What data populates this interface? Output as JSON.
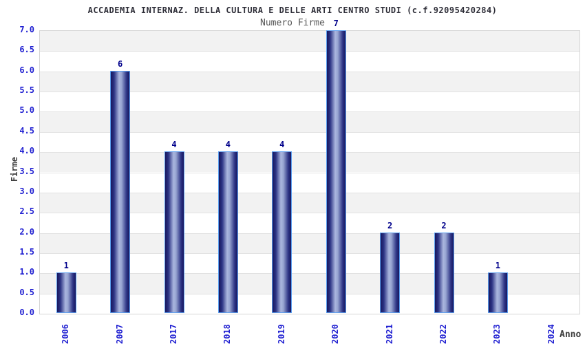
{
  "header": {
    "title": "ACCADEMIA INTERNAZ. DELLA CULTURA E DELLE ARTI CENTRO STUDI (c.f.92095420284)",
    "subtitle": "Numero Firme"
  },
  "chart_data": {
    "type": "bar",
    "title": "ACCADEMIA INTERNAZ. DELLA CULTURA E DELLE ARTI CENTRO STUDI (c.f.92095420284)",
    "subtitle": "Numero Firme",
    "xlabel": "Anno",
    "ylabel": "Firme",
    "categories": [
      "2006",
      "2007",
      "2017",
      "2018",
      "2019",
      "2020",
      "2021",
      "2022",
      "2023",
      "2024"
    ],
    "values": [
      1,
      6,
      4,
      4,
      4,
      7,
      2,
      2,
      1,
      0
    ],
    "value_labels": [
      "1",
      "6",
      "4",
      "4",
      "4",
      "7",
      "2",
      "2",
      "1",
      ""
    ],
    "ylim": [
      0,
      7
    ],
    "ytick_step": 0.5,
    "ytick_labels": [
      "0.0",
      "0.5",
      "1.0",
      "1.5",
      "2.0",
      "2.5",
      "3.0",
      "3.5",
      "4.0",
      "4.5",
      "5.0",
      "5.5",
      "6.0",
      "6.5",
      "7.0"
    ],
    "grid": "horizontal-bands",
    "legend_position": "none",
    "colors": {
      "title": "#2e2e38",
      "subtitle": "#555555",
      "tick_label": "#1f1fd1",
      "value_label": "#00008b",
      "axis_label": "#3c3c3c",
      "band_gray": "#f2f2f2",
      "band_white": "#ffffff",
      "grid_line": "#e2e2e2",
      "plot_border": "#d4d4d4",
      "bar_border": "#5b9ff0",
      "bar_dark": "#17175f",
      "bar_mid": "#2d3485",
      "bar_light": "#aab6de"
    }
  }
}
